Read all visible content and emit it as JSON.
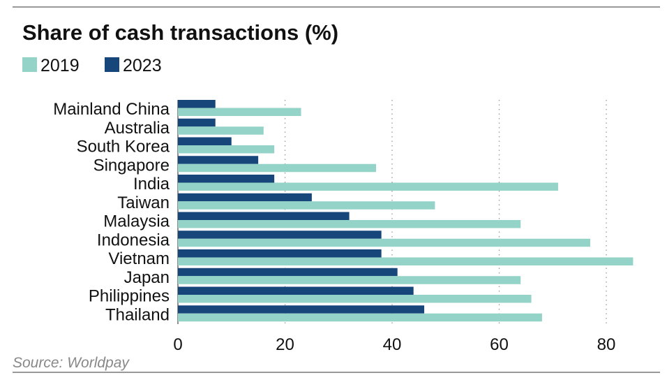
{
  "chart_data": {
    "type": "bar",
    "orientation": "horizontal",
    "title": "Share of cash transactions (%)",
    "categories": [
      "Mainland China",
      "Australia",
      "South Korea",
      "Singapore",
      "India",
      "Taiwan",
      "Malaysia",
      "Indonesia",
      "Vietnam",
      "Japan",
      "Philippines",
      "Thailand"
    ],
    "series": [
      {
        "name": "2023",
        "color": "#17467a",
        "values": [
          7,
          7,
          10,
          15,
          18,
          25,
          32,
          38,
          38,
          41,
          44,
          46
        ]
      },
      {
        "name": "2019",
        "color": "#94d3c7",
        "values": [
          23,
          16,
          18,
          37,
          71,
          48,
          64,
          77,
          85,
          64,
          66,
          68
        ]
      }
    ],
    "legend": [
      {
        "label": "2019",
        "color": "#94d3c7"
      },
      {
        "label": "2023",
        "color": "#17467a"
      }
    ],
    "legend_placement": "top-left",
    "xlim": [
      0,
      85
    ],
    "xticks": [
      "0",
      "20",
      "40",
      "60",
      "80"
    ],
    "xtick_values": [
      0,
      20,
      40,
      60,
      80
    ],
    "grid": "vertical dotted",
    "xlabel": "",
    "ylabel": "",
    "source": "Source: Worldpay"
  }
}
